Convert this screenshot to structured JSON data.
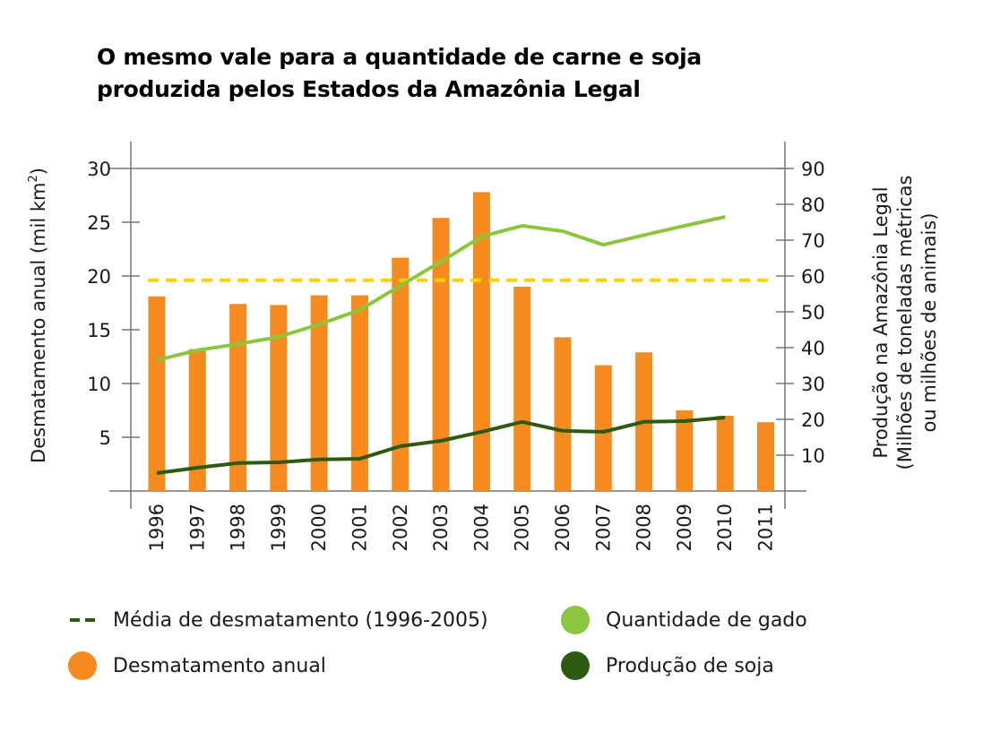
{
  "title": "O mesmo vale para a quantidade de carne e soja produzida pelos Estados da Amazônia Legal",
  "title_lines": [
    "O mesmo vale para a quantidade de carne e soja",
    "produzida pelos Estados da Amazônia Legal"
  ],
  "colors": {
    "bars": "#f58b1f",
    "mean_line": "#ffd200",
    "gado": "#8cc63f",
    "soja": "#2e5a10",
    "axis": "#777777"
  },
  "legend": [
    {
      "label": "Média de desmatamento (1996-2005)",
      "symbol": "dash",
      "color": "#2e5a10"
    },
    {
      "label": "Quantidade de gado",
      "symbol": "circle",
      "color": "#8cc63f"
    },
    {
      "label": "Desmatamento anual",
      "symbol": "circle",
      "color": "#f58b1f"
    },
    {
      "label": "Produção de soja",
      "symbol": "circle",
      "color": "#2e5a10"
    }
  ],
  "chart_data": {
    "type": "bar",
    "title": "O mesmo vale para a quantidade de carne e soja produzida pelos Estados da Amazônia Legal",
    "categories": [
      "1996",
      "1997",
      "1998",
      "1999",
      "2000",
      "2001",
      "2002",
      "2003",
      "2004",
      "2005",
      "2006",
      "2007",
      "2008",
      "2009",
      "2010",
      "2011"
    ],
    "xlabel": "",
    "ylabel": "Desmatamento anual (mil km²)",
    "ylabel_main": "Desmatamento anual (mil km",
    "ylabel_sup": "2",
    "ylabel_close": ")",
    "y2label": "Produção na Amazônia Legal (Milhões de toneladas métricas ou milhões de animais)",
    "y2label_lines": [
      "Produção na Amazônia Legal",
      "(Milhões de toneladas métricas",
      "ou milhões de animais)"
    ],
    "ylim": [
      0,
      30
    ],
    "y2lim": [
      0,
      90
    ],
    "yticks": [
      5,
      10,
      15,
      20,
      25,
      30
    ],
    "y2ticks": [
      10,
      20,
      30,
      40,
      50,
      60,
      70,
      80,
      90
    ],
    "grid": false,
    "legend_position": "bottom",
    "series": [
      {
        "name": "Desmatamento anual",
        "type": "bar",
        "axis": "left",
        "values": [
          18.1,
          13.2,
          17.4,
          17.3,
          18.2,
          18.2,
          21.7,
          25.4,
          27.8,
          19.0,
          14.3,
          11.7,
          12.9,
          7.5,
          7.0,
          6.4
        ]
      },
      {
        "name": "Média de desmatamento (1996-2005)",
        "type": "hline",
        "axis": "left",
        "value": 19.6,
        "range": [
          "1996",
          "2011"
        ]
      },
      {
        "name": "Quantidade de gado",
        "type": "line",
        "axis": "right",
        "values": [
          36.5,
          39.3,
          41.0,
          43.0,
          46.5,
          50.5,
          57.3,
          64.0,
          71.0,
          74.0,
          72.5,
          68.7,
          71.4,
          74.0,
          76.5,
          null
        ]
      },
      {
        "name": "Produção de soja",
        "type": "line",
        "axis": "right",
        "values": [
          5.0,
          6.5,
          7.8,
          8.0,
          8.8,
          9.0,
          12.5,
          14.0,
          16.5,
          19.3,
          16.8,
          16.5,
          19.3,
          19.5,
          20.5,
          null
        ]
      }
    ]
  }
}
